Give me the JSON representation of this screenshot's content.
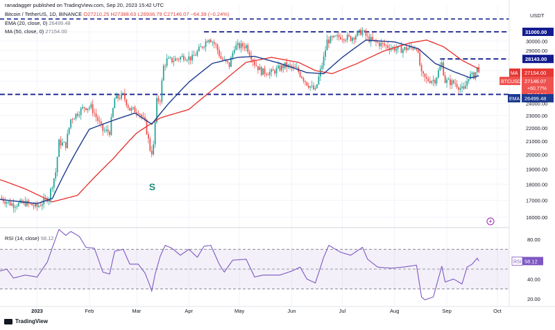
{
  "header": {
    "published_by": "ranadagger published on TradingView.com, Sep 20, 2023 15:42 UTC",
    "symbol_line": "Bitcoin / TetherUS, 1D, BINANCE",
    "ohlc": "O27210.25 H27388.63 L26936.79 C27146.07 −64.39 (−0.24%)",
    "ema_label": "EMA (20, close, 0)",
    "ema_value": "26499.48",
    "ma_label": "MA (50, close, 0)",
    "ma_value": "27154.00",
    "rsi_label": "RSI (14, close)",
    "rsi_value": "58.12"
  },
  "brand": "TradingView",
  "colors": {
    "up": "#26a69a",
    "down": "#ef5350",
    "ema": "#1c3a8e",
    "ma": "#e53935",
    "rsi": "#7e57c2",
    "level": "#131c8f",
    "axis_text": "#131722"
  },
  "chart_data": [
    {
      "type": "candlestick",
      "title": "Bitcoin / TetherUS, 1D, BINANCE",
      "currency": "USDT",
      "x_range": [
        "2022-12-10",
        "2023-10-08"
      ],
      "x_ticks": [
        "2023",
        "Feb",
        "Mar",
        "Apr",
        "May",
        "Jun",
        "Jul",
        "Aug",
        "Sep",
        "Oct"
      ],
      "y_ticks": [
        16000,
        17000,
        18000,
        19000,
        20000,
        21000,
        22000,
        23000,
        24000,
        25000,
        26000,
        27000,
        28000,
        29000,
        30000,
        31000
      ],
      "y_tick_labels": [
        "16000.00",
        "17000.00",
        "18000.00",
        "19000.00",
        "20000.00",
        "21000.00",
        "22000.00",
        "23000.00",
        "24000.00",
        "25000.00",
        "26000.00",
        "27000.00",
        "28000.00",
        "29000.00",
        "30000.00",
        "31000.00"
      ],
      "log_scale": true,
      "horizontal_levels": [
        {
          "value": 31000,
          "label": "31000.00",
          "from": "2023-04-10"
        },
        {
          "value": 28143,
          "label": "28143.00",
          "from": "2023-08-28"
        },
        {
          "value": 24800,
          "label": "24800.00",
          "from": "2022-12-10"
        }
      ],
      "annotation": {
        "text": "S",
        "date": "2023-03-10"
      },
      "price_badges": [
        {
          "tag": "MA",
          "value": "27154.00"
        },
        {
          "tag": "BTCUSDT",
          "value": "27146.07",
          "extra": [
            "+60.77%",
            "08:17:54"
          ]
        },
        {
          "tag": "EMA",
          "value": "26499.48"
        }
      ],
      "top_level": 32450,
      "close_keypoints": [
        [
          "2022-12-10",
          17150
        ],
        [
          "2022-12-16",
          16800
        ],
        [
          "2022-12-18",
          16740
        ],
        [
          "2022-12-25",
          16840
        ],
        [
          "2023-01-01",
          16600
        ],
        [
          "2023-01-08",
          17200
        ],
        [
          "2023-01-12",
          18800
        ],
        [
          "2023-01-14",
          20900
        ],
        [
          "2023-01-18",
          20700
        ],
        [
          "2023-01-21",
          22700
        ],
        [
          "2023-01-29",
          23700
        ],
        [
          "2023-02-02",
          23700
        ],
        [
          "2023-02-09",
          21800
        ],
        [
          "2023-02-13",
          21700
        ],
        [
          "2023-02-16",
          24400
        ],
        [
          "2023-02-21",
          24700
        ],
        [
          "2023-02-25",
          23500
        ],
        [
          "2023-03-02",
          23400
        ],
        [
          "2023-03-06",
          22400
        ],
        [
          "2023-03-09",
          20400
        ],
        [
          "2023-03-10",
          20200
        ],
        [
          "2023-03-11",
          20600
        ],
        [
          "2023-03-13",
          24200
        ],
        [
          "2023-03-15",
          24400
        ],
        [
          "2023-03-17",
          27400
        ],
        [
          "2023-03-19",
          28000
        ],
        [
          "2023-03-22",
          28000
        ],
        [
          "2023-03-29",
          28400
        ],
        [
          "2023-04-03",
          28200
        ],
        [
          "2023-04-10",
          29700
        ],
        [
          "2023-04-13",
          30400
        ],
        [
          "2023-04-17",
          29500
        ],
        [
          "2023-04-20",
          28200
        ],
        [
          "2023-04-25",
          27500
        ],
        [
          "2023-04-28",
          29400
        ],
        [
          "2023-05-05",
          29500
        ],
        [
          "2023-05-10",
          27700
        ],
        [
          "2023-05-14",
          26900
        ],
        [
          "2023-05-20",
          26800
        ],
        [
          "2023-05-28",
          27500
        ],
        [
          "2023-06-04",
          27100
        ],
        [
          "2023-06-10",
          25800
        ],
        [
          "2023-06-15",
          25100
        ],
        [
          "2023-06-20",
          28200
        ],
        [
          "2023-06-22",
          30000
        ],
        [
          "2023-06-30",
          30500
        ],
        [
          "2023-07-06",
          30300
        ],
        [
          "2023-07-13",
          31100
        ],
        [
          "2023-07-16",
          30300
        ],
        [
          "2023-07-20",
          29900
        ],
        [
          "2023-07-30",
          29300
        ],
        [
          "2023-08-05",
          29100
        ],
        [
          "2023-08-14",
          29400
        ],
        [
          "2023-08-17",
          26600
        ],
        [
          "2023-08-20",
          26100
        ],
        [
          "2023-08-25",
          26100
        ],
        [
          "2023-08-29",
          27700
        ],
        [
          "2023-08-31",
          26000
        ],
        [
          "2023-09-06",
          25800
        ],
        [
          "2023-09-11",
          25100
        ],
        [
          "2023-09-14",
          26500
        ],
        [
          "2023-09-17",
          26500
        ],
        [
          "2023-09-19",
          27200
        ],
        [
          "2023-09-20",
          27146
        ]
      ],
      "ema20_keypoints": [
        [
          "2022-12-10",
          17050
        ],
        [
          "2023-01-01",
          16800
        ],
        [
          "2023-01-10",
          17100
        ],
        [
          "2023-01-20",
          19300
        ],
        [
          "2023-02-01",
          21900
        ],
        [
          "2023-02-15",
          22600
        ],
        [
          "2023-02-28",
          23200
        ],
        [
          "2023-03-10",
          22300
        ],
        [
          "2023-03-20",
          24000
        ],
        [
          "2023-04-01",
          25900
        ],
        [
          "2023-04-15",
          27700
        ],
        [
          "2023-04-30",
          28300
        ],
        [
          "2023-05-10",
          28400
        ],
        [
          "2023-05-25",
          27700
        ],
        [
          "2023-06-10",
          26800
        ],
        [
          "2023-06-20",
          26700
        ],
        [
          "2023-07-01",
          28300
        ],
        [
          "2023-07-15",
          30100
        ],
        [
          "2023-08-01",
          29900
        ],
        [
          "2023-08-15",
          29200
        ],
        [
          "2023-08-25",
          27700
        ],
        [
          "2023-09-05",
          26900
        ],
        [
          "2023-09-15",
          26300
        ],
        [
          "2023-09-20",
          26499
        ]
      ],
      "ma50_keypoints": [
        [
          "2022-12-10",
          18300
        ],
        [
          "2022-12-25",
          17700
        ],
        [
          "2023-01-10",
          16900
        ],
        [
          "2023-01-25",
          17300
        ],
        [
          "2023-02-15",
          19700
        ],
        [
          "2023-03-01",
          21600
        ],
        [
          "2023-03-15",
          22800
        ],
        [
          "2023-04-01",
          23500
        ],
        [
          "2023-04-20",
          25800
        ],
        [
          "2023-05-05",
          27800
        ],
        [
          "2023-05-20",
          28300
        ],
        [
          "2023-06-05",
          27800
        ],
        [
          "2023-06-15",
          27000
        ],
        [
          "2023-06-25",
          26700
        ],
        [
          "2023-07-10",
          27700
        ],
        [
          "2023-07-25",
          28900
        ],
        [
          "2023-08-10",
          29800
        ],
        [
          "2023-08-20",
          30100
        ],
        [
          "2023-08-30",
          29400
        ],
        [
          "2023-09-10",
          28000
        ],
        [
          "2023-09-20",
          27154
        ]
      ]
    },
    {
      "type": "line",
      "title": "RSI (14, close)",
      "y_ticks": [
        20,
        40,
        60,
        80
      ],
      "y_tick_labels": [
        "20.00",
        "40.00",
        "60.00",
        "80.00"
      ],
      "bands": [
        30,
        50,
        70
      ],
      "current": "58.12",
      "rsi_keypoints": [
        [
          "2022-12-10",
          48
        ],
        [
          "2022-12-14",
          50
        ],
        [
          "2022-12-18",
          41
        ],
        [
          "2022-12-25",
          44
        ],
        [
          "2023-01-01",
          42
        ],
        [
          "2023-01-07",
          57
        ],
        [
          "2023-01-12",
          81
        ],
        [
          "2023-01-14",
          90
        ],
        [
          "2023-01-18",
          84
        ],
        [
          "2023-01-21",
          88
        ],
        [
          "2023-01-26",
          83
        ],
        [
          "2023-01-30",
          72
        ],
        [
          "2023-02-04",
          71
        ],
        [
          "2023-02-09",
          47
        ],
        [
          "2023-02-13",
          45
        ],
        [
          "2023-02-16",
          68
        ],
        [
          "2023-02-21",
          70
        ],
        [
          "2023-02-25",
          55
        ],
        [
          "2023-03-02",
          55
        ],
        [
          "2023-03-06",
          46
        ],
        [
          "2023-03-09",
          33
        ],
        [
          "2023-03-10",
          28
        ],
        [
          "2023-03-12",
          45
        ],
        [
          "2023-03-15",
          63
        ],
        [
          "2023-03-18",
          74
        ],
        [
          "2023-03-22",
          71
        ],
        [
          "2023-03-27",
          64
        ],
        [
          "2023-04-01",
          70
        ],
        [
          "2023-04-06",
          62
        ],
        [
          "2023-04-10",
          73
        ],
        [
          "2023-04-14",
          74
        ],
        [
          "2023-04-19",
          55
        ],
        [
          "2023-04-22",
          47
        ],
        [
          "2023-04-27",
          59
        ],
        [
          "2023-05-05",
          60
        ],
        [
          "2023-05-10",
          42
        ],
        [
          "2023-05-15",
          44
        ],
        [
          "2023-05-25",
          44
        ],
        [
          "2023-06-01",
          48
        ],
        [
          "2023-06-06",
          52
        ],
        [
          "2023-06-10",
          40
        ],
        [
          "2023-06-15",
          36
        ],
        [
          "2023-06-20",
          62
        ],
        [
          "2023-06-23",
          74
        ],
        [
          "2023-06-30",
          67
        ],
        [
          "2023-07-06",
          64
        ],
        [
          "2023-07-13",
          72
        ],
        [
          "2023-07-16",
          60
        ],
        [
          "2023-07-22",
          52
        ],
        [
          "2023-07-30",
          51
        ],
        [
          "2023-08-06",
          52
        ],
        [
          "2023-08-14",
          54
        ],
        [
          "2023-08-17",
          22
        ],
        [
          "2023-08-19",
          19
        ],
        [
          "2023-08-24",
          22
        ],
        [
          "2023-08-29",
          53
        ],
        [
          "2023-08-31",
          37
        ],
        [
          "2023-09-05",
          40
        ],
        [
          "2023-09-10",
          35
        ],
        [
          "2023-09-13",
          52
        ],
        [
          "2023-09-16",
          55
        ],
        [
          "2023-09-19",
          61
        ],
        [
          "2023-09-20",
          58.12
        ]
      ]
    }
  ]
}
